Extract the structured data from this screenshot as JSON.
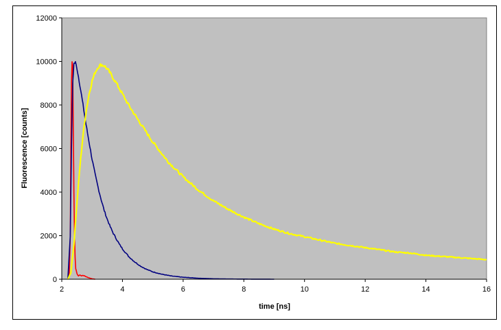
{
  "chart_data": {
    "type": "line",
    "title": "",
    "xlabel": "time [ns]",
    "ylabel": "Fluorescence [counts]",
    "xlim": [
      2,
      16
    ],
    "ylim": [
      0,
      12000
    ],
    "x_ticks": [
      "2",
      "4",
      "6",
      "8",
      "10",
      "12",
      "14",
      "16"
    ],
    "y_ticks": [
      "0",
      "2000",
      "4000",
      "6000",
      "8000",
      "10000",
      "12000"
    ],
    "grid": false,
    "legend": "none",
    "plot_background": "#c0c0c0",
    "series": [
      {
        "color": "#ff0000",
        "x": [
          2.2,
          2.25,
          2.28,
          2.3,
          2.32,
          2.34,
          2.36,
          2.38,
          2.4,
          2.42,
          2.44,
          2.46,
          2.5,
          2.55,
          2.6,
          2.65,
          2.7,
          2.8,
          2.9,
          3.0,
          3.1
        ],
        "y": [
          0,
          300,
          2000,
          6000,
          9000,
          10000,
          9800,
          7000,
          4000,
          2000,
          1000,
          500,
          250,
          150,
          200,
          150,
          180,
          120,
          60,
          20,
          0
        ]
      },
      {
        "color": "#000080",
        "x": [
          2.2,
          2.28,
          2.32,
          2.36,
          2.4,
          2.45,
          2.5,
          2.6,
          2.7,
          2.8,
          2.9,
          3.0,
          3.1,
          3.2,
          3.3,
          3.4,
          3.5,
          3.6,
          3.7,
          3.8,
          3.9,
          4.0,
          4.2,
          4.4,
          4.6,
          4.8,
          5.0,
          5.3,
          5.6,
          6.0,
          6.5,
          7.0,
          7.5,
          8.0,
          8.5,
          9.0
        ],
        "y": [
          0,
          2000,
          6000,
          9000,
          9900,
          9950,
          9700,
          8900,
          8000,
          7100,
          6300,
          5500,
          4800,
          4200,
          3650,
          3150,
          2750,
          2400,
          2100,
          1850,
          1600,
          1400,
          1050,
          800,
          600,
          450,
          340,
          230,
          150,
          90,
          45,
          20,
          10,
          5,
          2,
          0
        ]
      },
      {
        "color": "#ffff00",
        "x": [
          2.2,
          2.3,
          2.4,
          2.5,
          2.6,
          2.7,
          2.8,
          2.9,
          3.0,
          3.1,
          3.2,
          3.3,
          3.4,
          3.5,
          3.6,
          3.8,
          4.0,
          4.2,
          4.5,
          5.0,
          5.5,
          6.0,
          6.5,
          7.0,
          7.5,
          8.0,
          8.5,
          9.0,
          9.5,
          10.0,
          10.5,
          11.0,
          11.5,
          12.0,
          12.5,
          13.0,
          13.5,
          14.0,
          14.5,
          15.0,
          15.5,
          16.0
        ],
        "y": [
          0,
          300,
          1600,
          3500,
          5200,
          6600,
          7700,
          8500,
          9100,
          9500,
          9750,
          9850,
          9800,
          9650,
          9450,
          9000,
          8500,
          8000,
          7350,
          6300,
          5400,
          4700,
          4100,
          3600,
          3200,
          2850,
          2550,
          2300,
          2100,
          1950,
          1800,
          1650,
          1550,
          1450,
          1350,
          1250,
          1200,
          1100,
          1050,
          1000,
          950,
          900
        ]
      }
    ]
  }
}
